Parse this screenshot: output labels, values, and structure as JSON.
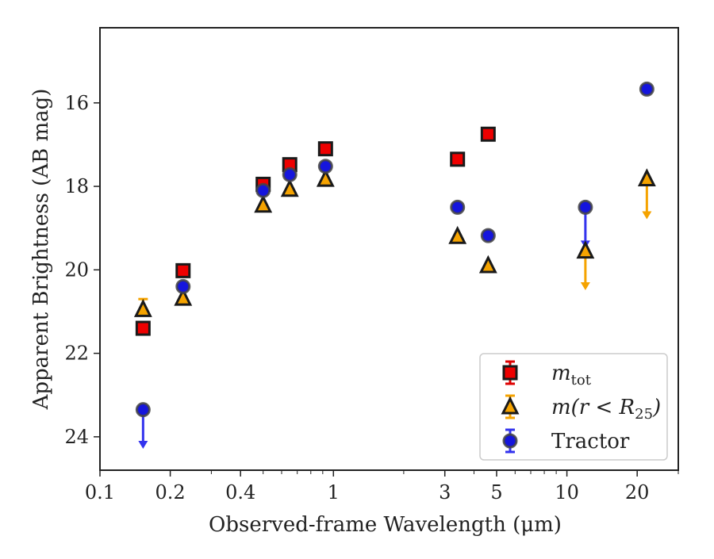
{
  "chart_data": {
    "type": "scatter",
    "xlabel": "Observed-frame Wavelength (μm)",
    "ylabel": "Apparent Brightness (AB mag)",
    "xscale": "log",
    "xlim": [
      0.1,
      30
    ],
    "ylim": [
      24.8,
      14.2
    ],
    "y_inverted": true,
    "xticks": [
      {
        "value": 0.1,
        "label": "0.1"
      },
      {
        "value": 0.2,
        "label": "0.2"
      },
      {
        "value": 0.4,
        "label": "0.4"
      },
      {
        "value": 1,
        "label": "1"
      },
      {
        "value": 3,
        "label": "3"
      },
      {
        "value": 5,
        "label": "5"
      },
      {
        "value": 10,
        "label": "10"
      },
      {
        "value": 20,
        "label": "20"
      }
    ],
    "yticks": [
      {
        "value": 16,
        "label": "16"
      },
      {
        "value": 18,
        "label": "18"
      },
      {
        "value": 20,
        "label": "20"
      },
      {
        "value": 22,
        "label": "22"
      },
      {
        "value": 24,
        "label": "24"
      }
    ],
    "grid": false,
    "legend_position": "lower-right",
    "series": [
      {
        "name": "m_tot",
        "legend_parts": {
          "base": "m",
          "sub": "tot"
        },
        "marker": "square",
        "face_color": "#ee0000",
        "edge_color": "#1a1a1a",
        "error_color": "#dd0000",
        "points": [
          {
            "x": 0.153,
            "y": 21.4
          },
          {
            "x": 0.227,
            "y": 20.02
          },
          {
            "x": 0.5,
            "y": 17.95
          },
          {
            "x": 0.65,
            "y": 17.48
          },
          {
            "x": 0.925,
            "y": 17.1
          },
          {
            "x": 3.4,
            "y": 17.35
          },
          {
            "x": 4.6,
            "y": 16.75
          }
        ]
      },
      {
        "name": "m(r < R25)",
        "legend_parts": {
          "base": "m(r < R",
          "sub": "25",
          "tail": ")"
        },
        "marker": "triangle",
        "face_color": "#f5a300",
        "edge_color": "#1a1a1a",
        "error_color": "#f5a300",
        "points": [
          {
            "x": 0.153,
            "y": 20.95,
            "err_lo": 20.7
          },
          {
            "x": 0.227,
            "y": 20.68
          },
          {
            "x": 0.5,
            "y": 18.45
          },
          {
            "x": 0.65,
            "y": 18.07
          },
          {
            "x": 0.925,
            "y": 17.83
          },
          {
            "x": 3.4,
            "y": 19.2
          },
          {
            "x": 4.6,
            "y": 19.9
          },
          {
            "x": 12.0,
            "y": 19.55,
            "upper_limit": true,
            "arrow_to": 20.45
          },
          {
            "x": 22.0,
            "y": 17.82,
            "upper_limit": true,
            "arrow_to": 18.75
          }
        ]
      },
      {
        "name": "Tractor",
        "marker": "circle",
        "face_color": "#1515dd",
        "edge_color": "#444444",
        "error_color": "#3333ee",
        "points": [
          {
            "x": 0.153,
            "y": 23.35,
            "upper_limit": true,
            "arrow_to": 24.25
          },
          {
            "x": 0.227,
            "y": 20.4
          },
          {
            "x": 0.5,
            "y": 18.1
          },
          {
            "x": 0.65,
            "y": 17.72
          },
          {
            "x": 0.925,
            "y": 17.52
          },
          {
            "x": 3.4,
            "y": 18.5
          },
          {
            "x": 4.6,
            "y": 19.18
          },
          {
            "x": 12.0,
            "y": 18.5,
            "upper_limit": true,
            "arrow_to": 19.45
          },
          {
            "x": 22.0,
            "y": 15.67
          }
        ]
      }
    ]
  }
}
